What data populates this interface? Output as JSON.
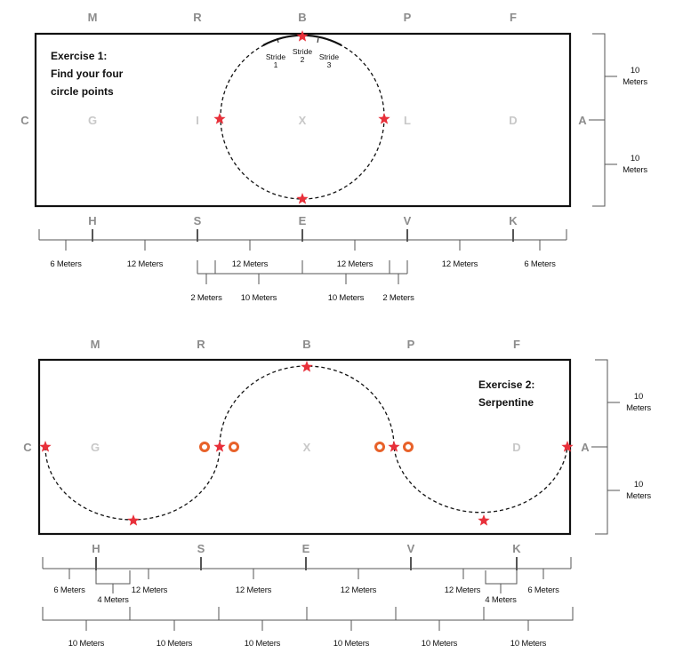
{
  "exercise1": {
    "title_line1": "Exercise 1:",
    "title_line2": "Find your four",
    "title_line3": "circle points",
    "top_letters": [
      "M",
      "R",
      "B",
      "P",
      "F"
    ],
    "left_letter": "C",
    "right_letter": "A",
    "center_letters": [
      "G",
      "I",
      "X",
      "L",
      "D"
    ],
    "bottom_letters": [
      "H",
      "S",
      "E",
      "V",
      "K"
    ],
    "strides": [
      {
        "l1": "Stride",
        "l2": "1"
      },
      {
        "l1": "Stride",
        "l2": "2"
      },
      {
        "l1": "Stride",
        "l2": "3"
      }
    ],
    "side_labels": [
      {
        "l1": "10",
        "l2": "Meters"
      },
      {
        "l1": "10",
        "l2": "Meters"
      }
    ],
    "row1": [
      "6 Meters",
      "12 Meters",
      "12 Meters",
      "12 Meters",
      "12 Meters",
      "6 Meters"
    ],
    "row2": [
      "2 Meters",
      "10 Meters",
      "10 Meters",
      "2 Meters"
    ]
  },
  "exercise2": {
    "title_line1": "Exercise 2:",
    "title_line2": "Serpentine",
    "top_letters": [
      "M",
      "R",
      "B",
      "P",
      "F"
    ],
    "left_letter": "C",
    "right_letter": "A",
    "center_letters": [
      "G",
      "X",
      "D"
    ],
    "bottom_letters": [
      "H",
      "S",
      "E",
      "V",
      "K"
    ],
    "side_labels": [
      {
        "l1": "10",
        "l2": "Meters"
      },
      {
        "l1": "10",
        "l2": "Meters"
      }
    ],
    "row1": [
      "6 Meters",
      "12 Meters",
      "12 Meters",
      "12 Meters",
      "12 Meters",
      "6 Meters"
    ],
    "row1_small": [
      "4 Meters",
      "4 Meters"
    ],
    "row2": [
      "10 Meters",
      "10 Meters",
      "10 Meters",
      "10 Meters",
      "10 Meters",
      "10 Meters"
    ]
  },
  "colors": {
    "star": "#e8303a",
    "cone": "#e8622a"
  }
}
